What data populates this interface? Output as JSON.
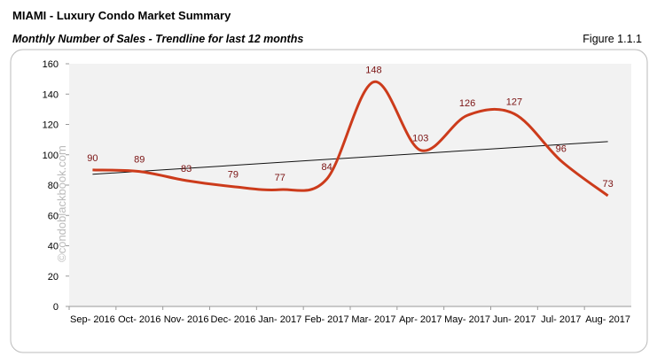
{
  "chart_data": {
    "type": "line",
    "title": "MIAMI - Luxury Condo Market Summary",
    "subtitle": "Monthly Number of Sales - Trendline for last 12 months",
    "figure_label": "Figure 1.1.1",
    "watermark": "©condoblackbook.com",
    "categories": [
      "Sep- 2016",
      "Oct- 2016",
      "Nov- 2016",
      "Dec- 2016",
      "Jan- 2017",
      "Feb- 2017",
      "Mar- 2017",
      "Apr- 2017",
      "May- 2017",
      "Jun- 2017",
      "Jul- 2017",
      "Aug- 2017"
    ],
    "values": [
      90,
      89,
      83,
      79,
      77,
      84,
      148,
      103,
      126,
      127,
      96,
      73
    ],
    "color": "#cc3b1b",
    "label_color": "#7a1212",
    "trendline": true,
    "trendline_color": "#111111",
    "ylim": [
      0,
      160
    ],
    "yticks": [
      0,
      20,
      40,
      60,
      80,
      100,
      120,
      140,
      160
    ],
    "grid": false
  }
}
